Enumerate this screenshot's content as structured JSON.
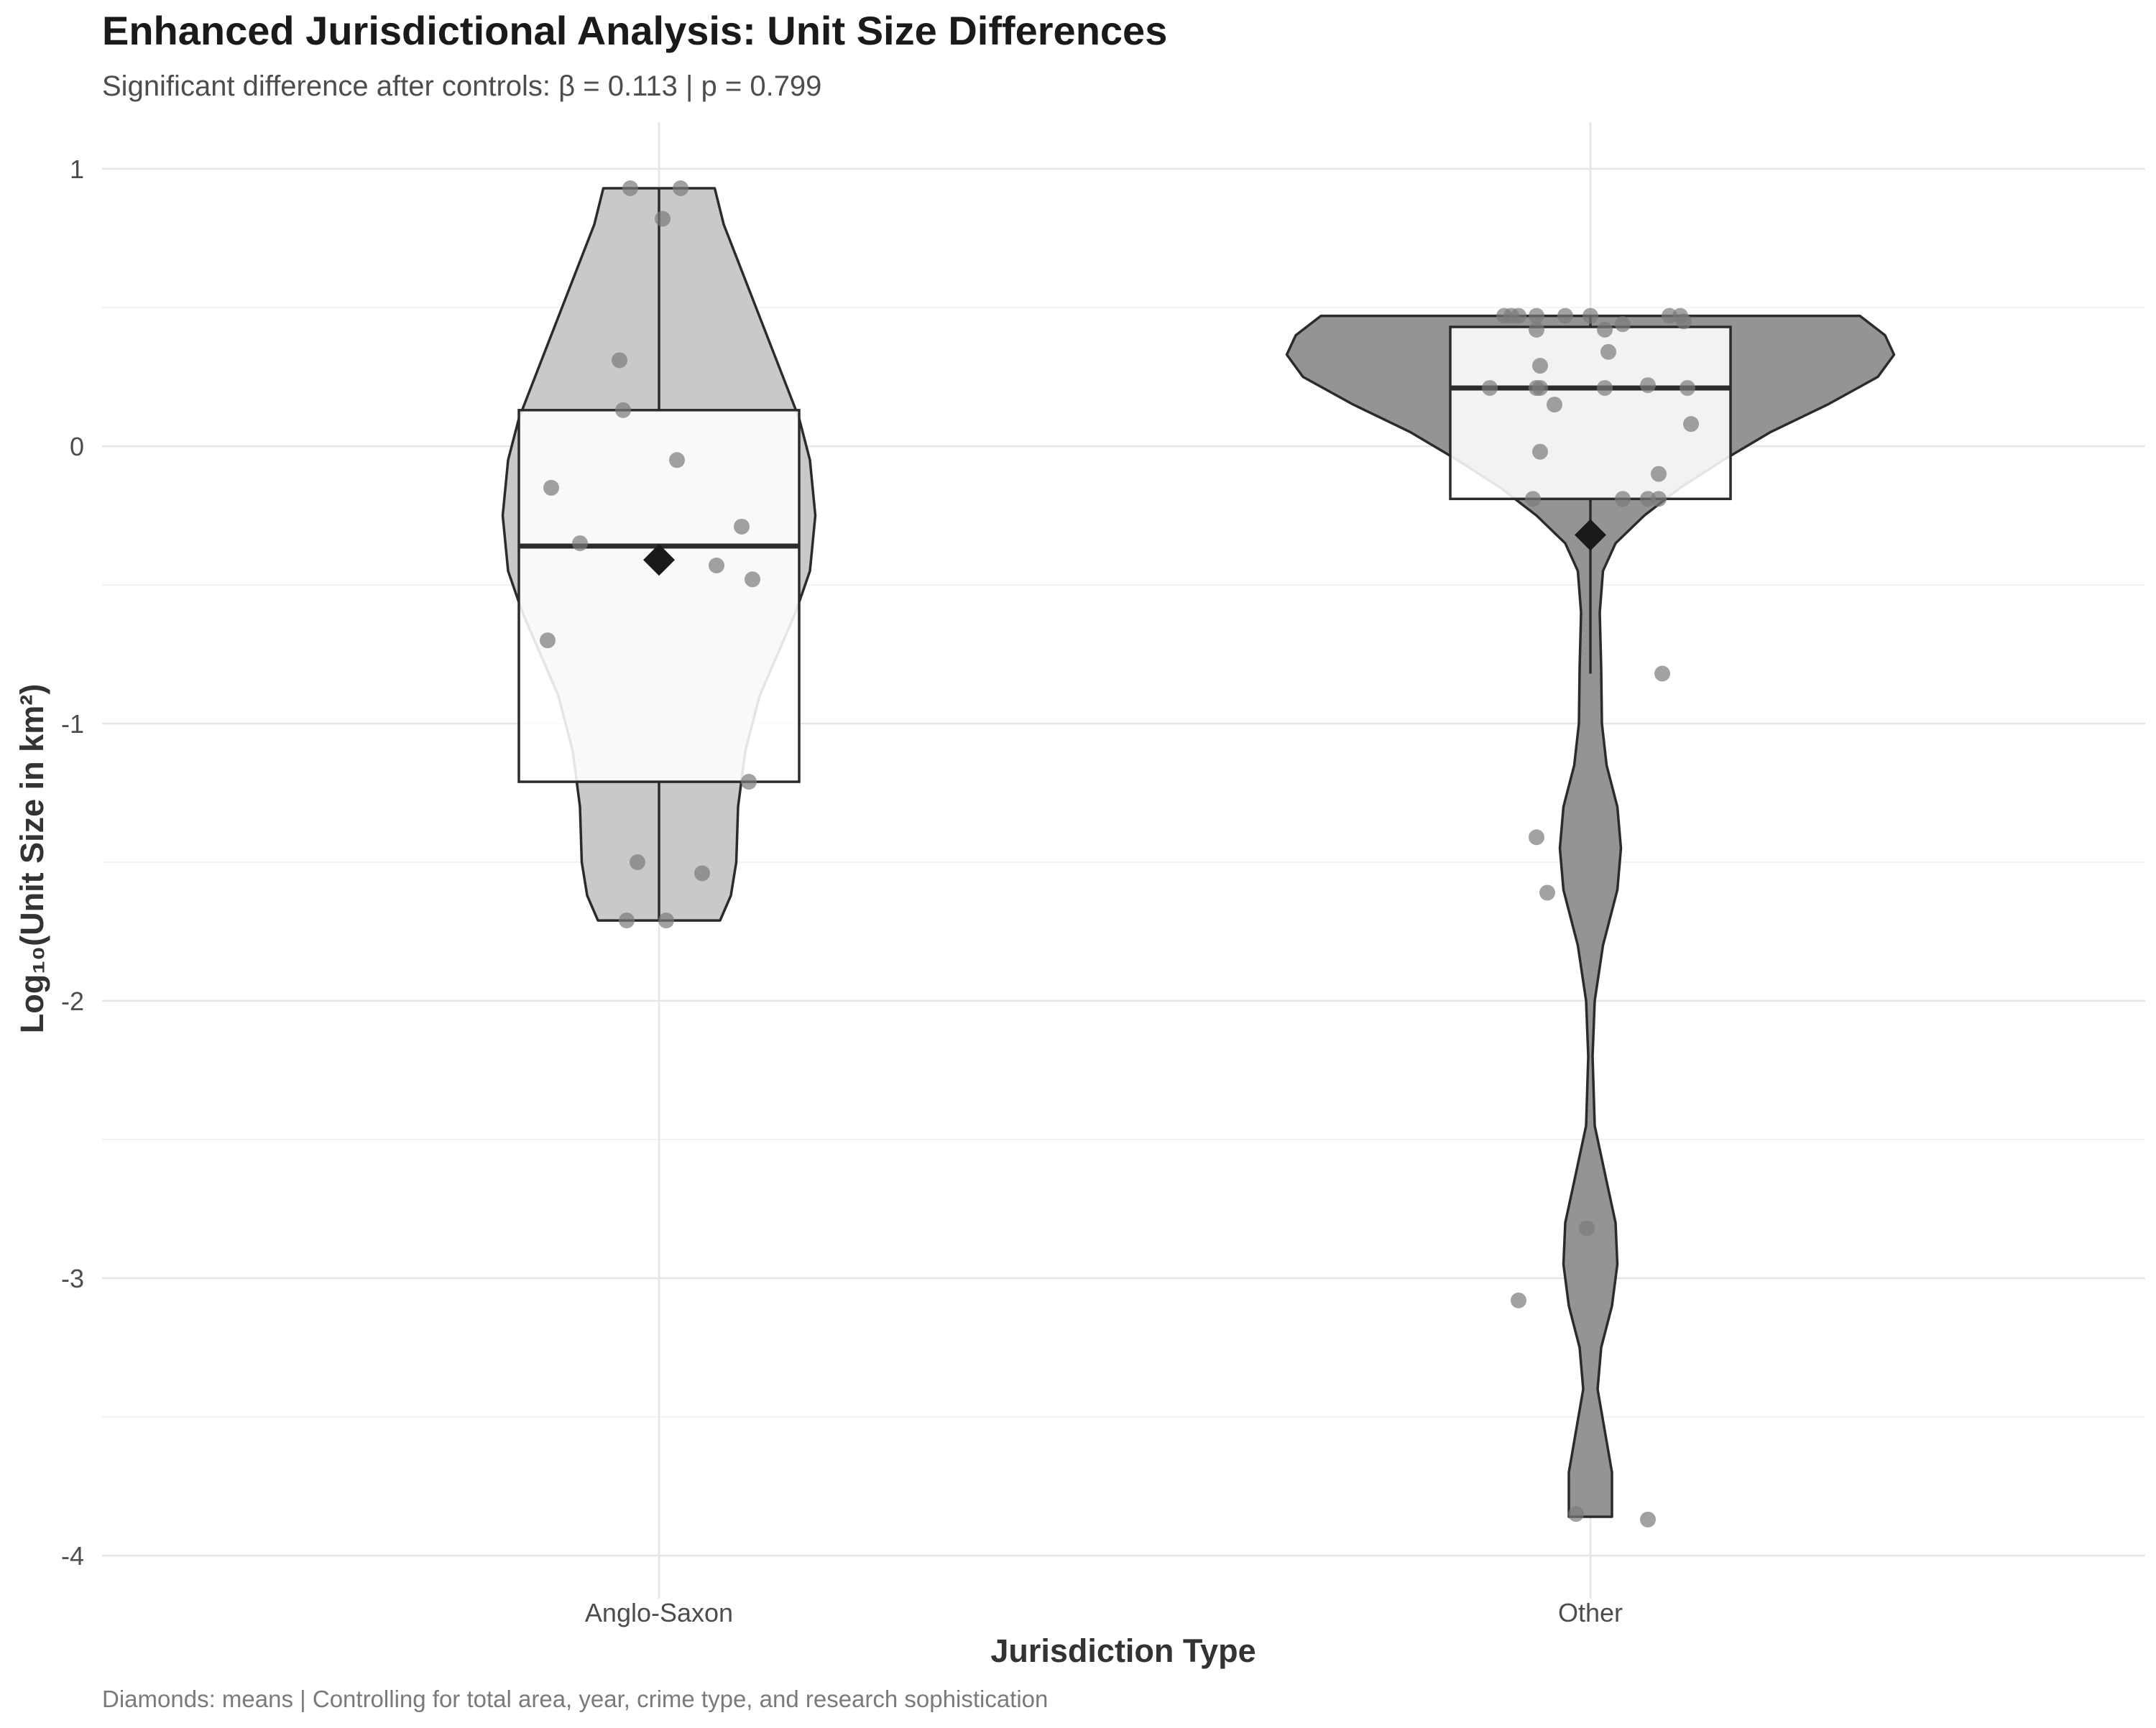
{
  "chart_data": {
    "type": "violin",
    "title": "Enhanced Jurisdictional Analysis: Unit Size Differences",
    "subtitle": "Significant difference after controls: β = 0.113 | p = 0.799",
    "xlabel": "Jurisdiction Type",
    "ylabel": "Log₁₀(Unit Size in km²)",
    "caption": "Diamonds: means | Controlling for total area, year, crime type, and research sophistication",
    "ylim": [
      -4.1,
      1.17
    ],
    "yticks": [
      1,
      0,
      -1,
      -2,
      -3,
      -4
    ],
    "ytick_labels": [
      "1",
      "0",
      "-1",
      "-2",
      "-3",
      "-4"
    ],
    "grid": true,
    "overlays": [
      "boxplot",
      "jittered points",
      "mean diamond"
    ],
    "categories": [
      "Anglo-Saxon",
      "Other"
    ],
    "groups": [
      {
        "name": "Anglo-Saxon",
        "fill": "#c9c9c9",
        "box": {
          "q1": -1.21,
          "median": -0.36,
          "q3": 0.13,
          "whisker_low": -1.71,
          "whisker_high": 0.93
        },
        "mean": -0.41,
        "density": [
          [
            0.93,
            0.155
          ],
          [
            0.8,
            0.18
          ],
          [
            0.6,
            0.24
          ],
          [
            0.4,
            0.3
          ],
          [
            0.25,
            0.345
          ],
          [
            0.1,
            0.39
          ],
          [
            -0.05,
            0.42
          ],
          [
            -0.25,
            0.435
          ],
          [
            -0.45,
            0.42
          ],
          [
            -0.6,
            0.38
          ],
          [
            -0.75,
            0.33
          ],
          [
            -0.9,
            0.28
          ],
          [
            -1.1,
            0.24
          ],
          [
            -1.3,
            0.22
          ],
          [
            -1.5,
            0.215
          ],
          [
            -1.62,
            0.2
          ],
          [
            -1.71,
            0.17
          ]
        ],
        "points": [
          [
            -0.08,
            0.93
          ],
          [
            0.06,
            0.93
          ],
          [
            0.01,
            0.82
          ],
          [
            -0.11,
            0.31
          ],
          [
            -0.1,
            0.13
          ],
          [
            0.05,
            -0.05
          ],
          [
            -0.3,
            -0.15
          ],
          [
            0.23,
            -0.29
          ],
          [
            -0.22,
            -0.35
          ],
          [
            0.16,
            -0.43
          ],
          [
            0.26,
            -0.48
          ],
          [
            -0.31,
            -0.7
          ],
          [
            0.25,
            -1.21
          ],
          [
            -0.06,
            -1.5
          ],
          [
            0.12,
            -1.54
          ],
          [
            -0.09,
            -1.71
          ],
          [
            0.02,
            -1.71
          ]
        ]
      },
      {
        "name": "Other",
        "fill": "#949494",
        "box": {
          "q1": -0.19,
          "median": 0.21,
          "q3": 0.43,
          "whisker_low": -0.82,
          "whisker_high": 0.47
        },
        "mean": -0.32,
        "density": [
          [
            0.47,
            0.75
          ],
          [
            0.4,
            0.82
          ],
          [
            0.33,
            0.845
          ],
          [
            0.25,
            0.8
          ],
          [
            0.15,
            0.66
          ],
          [
            0.05,
            0.5
          ],
          [
            -0.05,
            0.37
          ],
          [
            -0.15,
            0.25
          ],
          [
            -0.25,
            0.15
          ],
          [
            -0.35,
            0.07
          ],
          [
            -0.45,
            0.035
          ],
          [
            -0.6,
            0.026
          ],
          [
            -0.8,
            0.03
          ],
          [
            -1.0,
            0.032
          ],
          [
            -1.15,
            0.045
          ],
          [
            -1.3,
            0.075
          ],
          [
            -1.45,
            0.085
          ],
          [
            -1.6,
            0.075
          ],
          [
            -1.8,
            0.035
          ],
          [
            -2.0,
            0.012
          ],
          [
            -2.2,
            0.006
          ],
          [
            -2.45,
            0.012
          ],
          [
            -2.65,
            0.045
          ],
          [
            -2.8,
            0.07
          ],
          [
            -2.95,
            0.075
          ],
          [
            -3.1,
            0.06
          ],
          [
            -3.25,
            0.03
          ],
          [
            -3.4,
            0.02
          ],
          [
            -3.55,
            0.04
          ],
          [
            -3.7,
            0.06
          ],
          [
            -3.8,
            0.06
          ],
          [
            -3.86,
            0.06
          ]
        ],
        "points": [
          [
            -0.24,
            0.47
          ],
          [
            -0.22,
            0.47
          ],
          [
            -0.2,
            0.47
          ],
          [
            -0.15,
            0.47
          ],
          [
            -0.07,
            0.47
          ],
          [
            0.22,
            0.47
          ],
          [
            0.25,
            0.47
          ],
          [
            0.26,
            0.45
          ],
          [
            0.0,
            0.47
          ],
          [
            0.09,
            0.44
          ],
          [
            0.04,
            0.42
          ],
          [
            -0.15,
            0.42
          ],
          [
            0.05,
            0.34
          ],
          [
            -0.14,
            0.29
          ],
          [
            -0.28,
            0.21
          ],
          [
            -0.15,
            0.21
          ],
          [
            -0.14,
            0.21
          ],
          [
            0.04,
            0.21
          ],
          [
            0.16,
            0.22
          ],
          [
            0.27,
            0.21
          ],
          [
            -0.1,
            0.15
          ],
          [
            0.28,
            0.08
          ],
          [
            -0.14,
            -0.02
          ],
          [
            0.19,
            -0.1
          ],
          [
            -0.16,
            -0.19
          ],
          [
            0.09,
            -0.19
          ],
          [
            0.16,
            -0.19
          ],
          [
            0.19,
            -0.19
          ],
          [
            0.2,
            -0.82
          ],
          [
            -0.15,
            -1.41
          ],
          [
            -0.12,
            -1.61
          ],
          [
            -0.01,
            -2.82
          ],
          [
            -0.2,
            -3.08
          ],
          [
            -0.04,
            -3.85
          ],
          [
            0.16,
            -3.87
          ]
        ]
      }
    ]
  }
}
